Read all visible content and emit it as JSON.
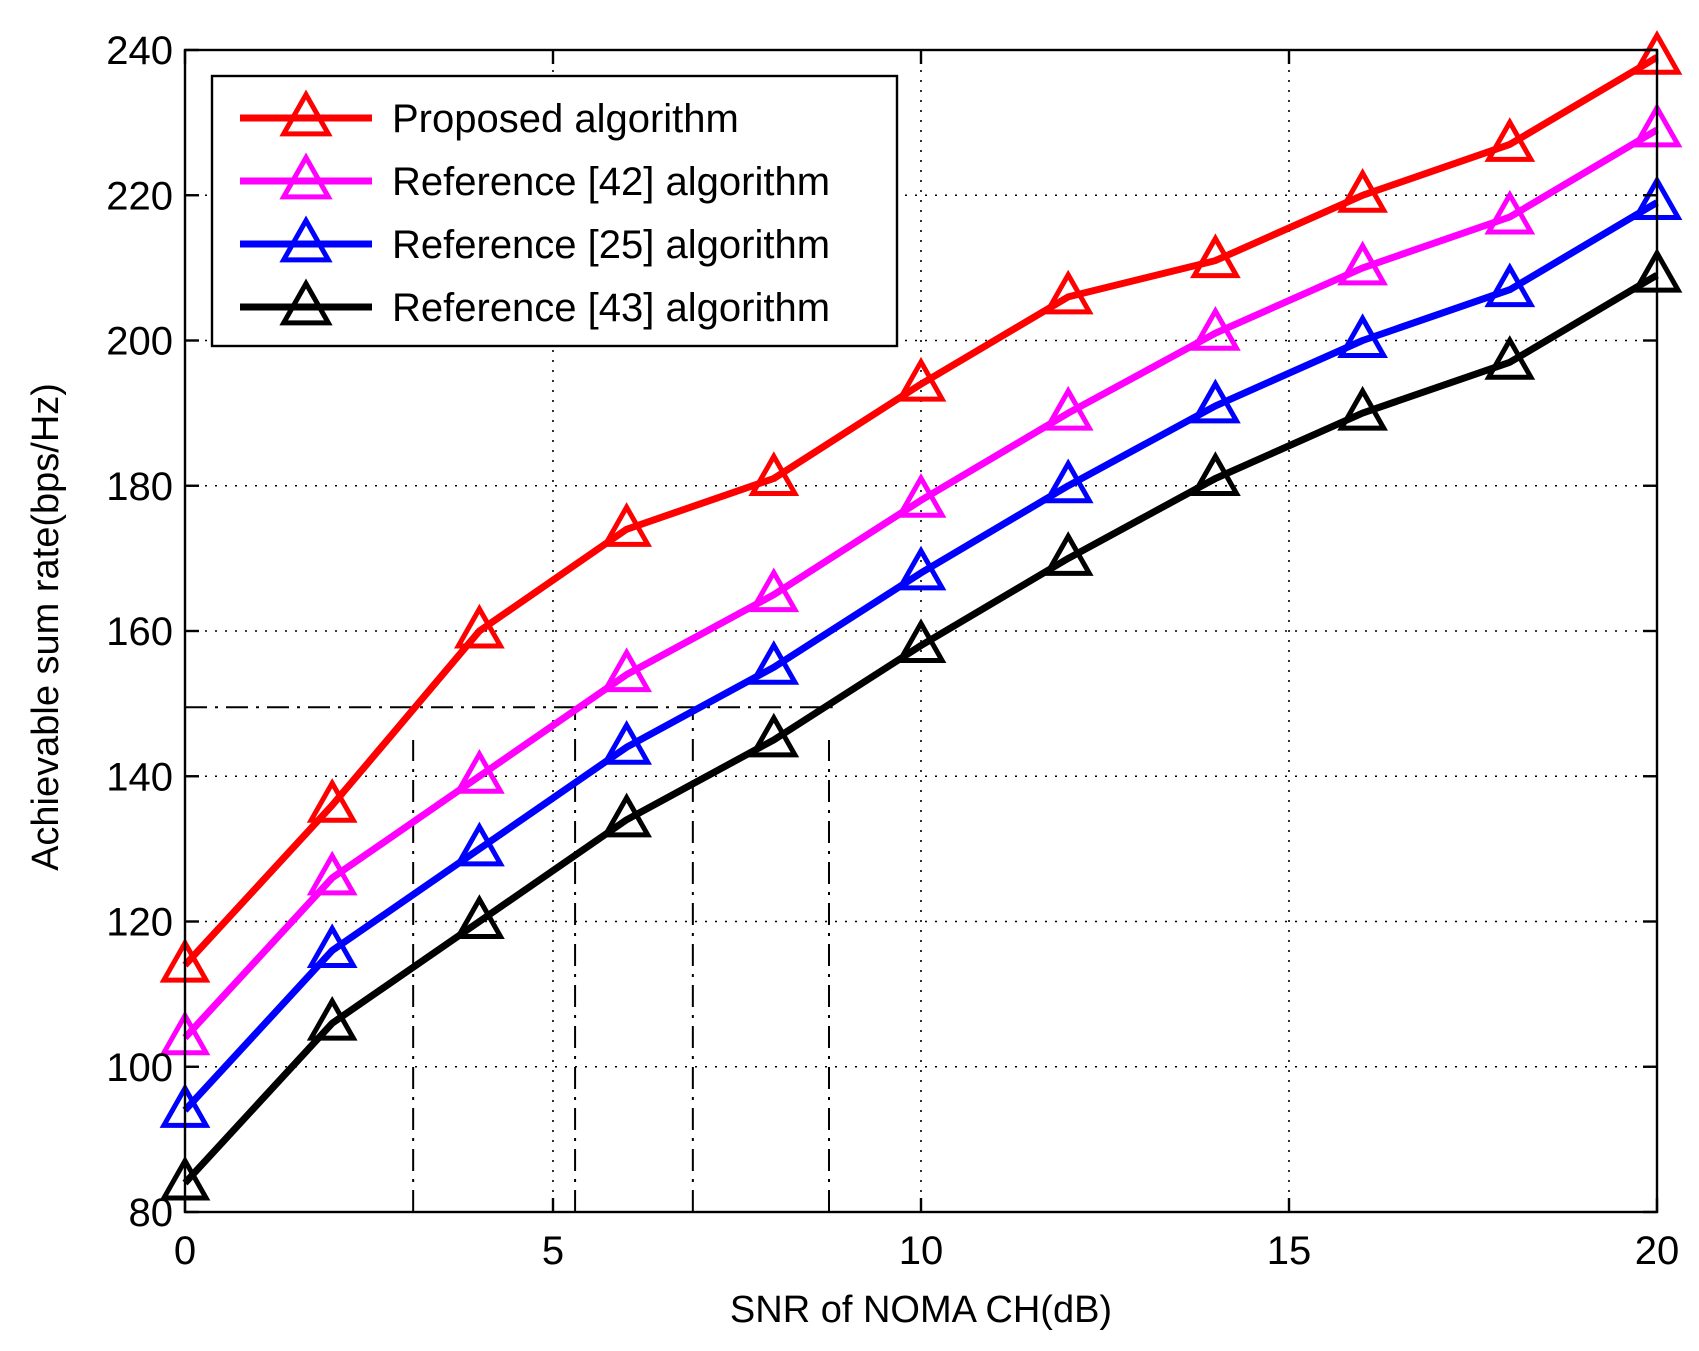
{
  "chart_data": {
    "type": "line",
    "title": "",
    "xlabel": "SNR of NOMA CH(dB)",
    "ylabel": "Achievable sum rate(bps/Hz)",
    "xlim": [
      0,
      20
    ],
    "ylim": [
      80,
      240
    ],
    "xticks": [
      0,
      5,
      10,
      15,
      20
    ],
    "yticks": [
      80,
      100,
      120,
      140,
      160,
      180,
      200,
      220,
      240
    ],
    "grid": true,
    "legend_position": "top-left",
    "x": [
      0,
      2,
      4,
      6,
      8,
      10,
      12,
      14,
      16,
      18,
      20
    ],
    "series": [
      {
        "name": "Proposed algorithm",
        "color": "#ff0000",
        "marker": "triangle",
        "values": [
          114,
          136,
          160,
          174,
          181,
          194,
          206,
          211,
          220,
          227,
          239
        ]
      },
      {
        "name": "Reference [42] algorithm",
        "color": "#ff00ff",
        "marker": "triangle",
        "values": [
          104,
          126,
          140,
          154,
          165,
          178,
          190,
          201,
          210,
          217,
          229
        ]
      },
      {
        "name": "Reference [25] algorithm",
        "color": "#0000ff",
        "marker": "triangle",
        "values": [
          94,
          116,
          130,
          144,
          155,
          168,
          180,
          191,
          200,
          207,
          219
        ]
      },
      {
        "name": "Reference [43] algorithm",
        "color": "#000000",
        "marker": "triangle",
        "values": [
          84,
          106,
          120,
          134,
          145,
          158,
          170,
          181,
          190,
          197,
          209
        ]
      }
    ],
    "reference_lines": {
      "horizontal": {
        "y": 149.5,
        "x_from": 0,
        "x_to": 8.8
      },
      "vertical": [
        {
          "x": 3.1,
          "y_from": 80,
          "y_to": 145
        },
        {
          "x": 5.3,
          "y_from": 80,
          "y_to": 149.5
        },
        {
          "x": 6.9,
          "y_from": 80,
          "y_to": 149.5
        },
        {
          "x": 8.75,
          "y_from": 80,
          "y_to": 145
        }
      ]
    }
  }
}
